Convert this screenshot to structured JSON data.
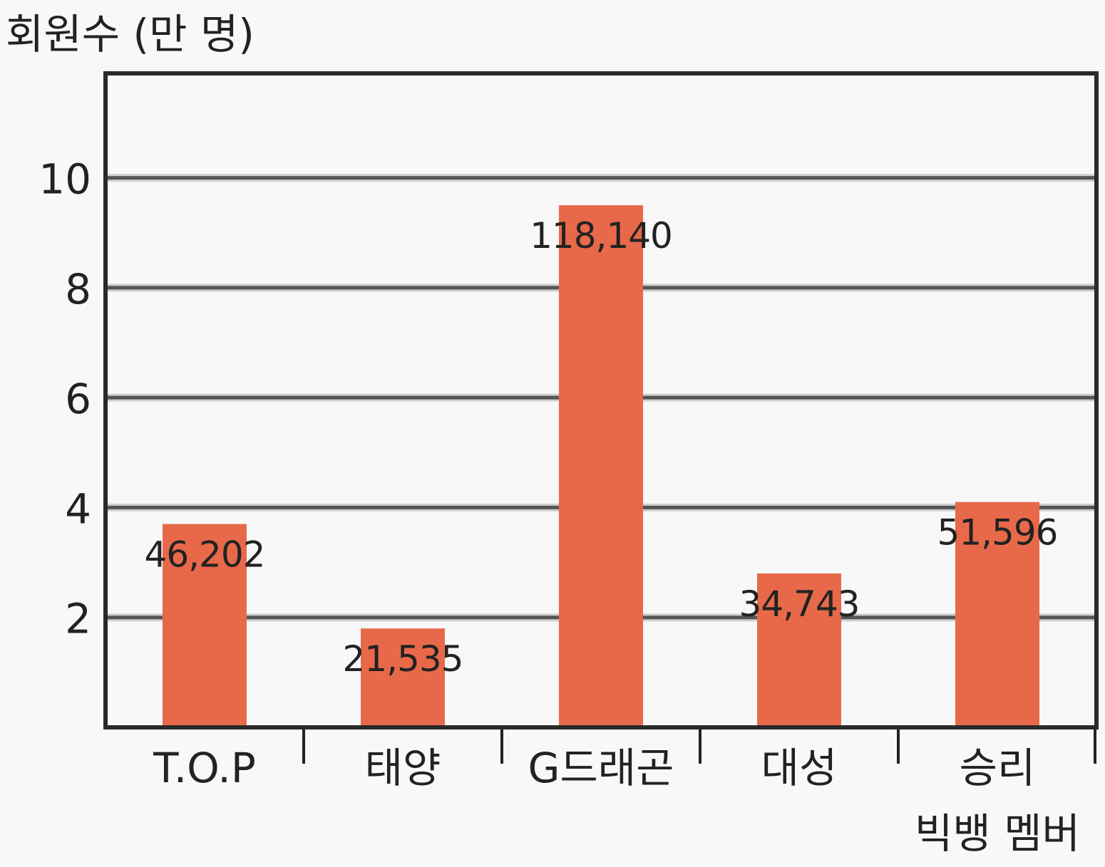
{
  "chart_data": {
    "type": "bar",
    "title": "회원수 (만 명)",
    "categories": [
      [
        "T.O.P"
      ],
      [
        "태양"
      ],
      [
        "G드래곤"
      ],
      [
        "대성"
      ],
      [
        "승리",
        "빅뱅 멤버"
      ]
    ],
    "values": [
      3.7,
      1.8,
      9.5,
      2.8,
      4.1
    ],
    "value_labels": [
      "46,202",
      "21,535",
      "118,140",
      "34,743",
      "51,596"
    ],
    "yticks": [
      2,
      4,
      6,
      8,
      10
    ],
    "ylim": [
      0,
      11.9
    ],
    "grid": true,
    "colors": {
      "bar": "#e8694a",
      "grid": "#555555"
    }
  }
}
